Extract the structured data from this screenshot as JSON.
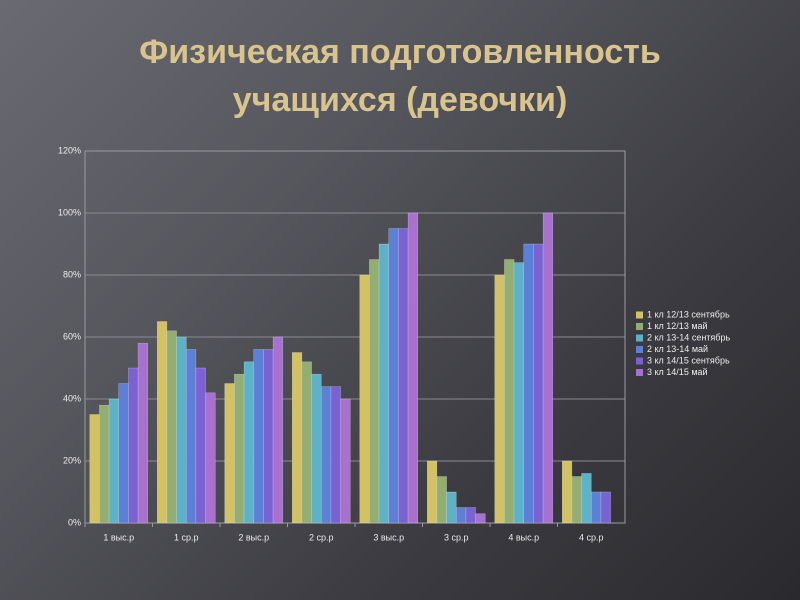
{
  "chart_data": {
    "type": "bar",
    "title": "Физическая подготовленность учащихся (девочки)",
    "categories": [
      "1 выс.р",
      "1 ср.р",
      "2 выс.р",
      "2 ср.р",
      "3 выс.р",
      "3 ср.р",
      "4 выс.р",
      "4 ср.р"
    ],
    "series": [
      {
        "name": "1 кл 12/13 сентябрь",
        "color": "#d2c264",
        "values": [
          35,
          65,
          45,
          55,
          80,
          20,
          80,
          20
        ]
      },
      {
        "name": "1 кл 12/13 май",
        "color": "#93ae72",
        "values": [
          38,
          62,
          48,
          52,
          85,
          15,
          85,
          15
        ]
      },
      {
        "name": "2 кл 13-14 сентябрь",
        "color": "#5eb2c8",
        "values": [
          40,
          60,
          52,
          48,
          90,
          10,
          84,
          16
        ]
      },
      {
        "name": "2 кл 13-14 май",
        "color": "#5b80d6",
        "values": [
          45,
          56,
          56,
          44,
          95,
          5,
          90,
          10
        ]
      },
      {
        "name": "3 кл 14/15 сентябрь",
        "color": "#7a62d2",
        "values": [
          50,
          50,
          56,
          44,
          95,
          5,
          90,
          10
        ]
      },
      {
        "name": "3 кл 14/15 май",
        "color": "#a870cf",
        "values": [
          58,
          42,
          60,
          40,
          100,
          3,
          100,
          null
        ]
      }
    ],
    "ylim": [
      0,
      120
    ],
    "yticks": [
      {
        "value": 0,
        "label": "0%"
      },
      {
        "value": 20,
        "label": "20%"
      },
      {
        "value": 40,
        "label": "40%"
      },
      {
        "value": 60,
        "label": "60%"
      },
      {
        "value": 80,
        "label": "80%"
      },
      {
        "value": 100,
        "label": "100%"
      },
      {
        "value": 120,
        "label": "120%"
      }
    ],
    "grid": true,
    "legend": "right"
  }
}
